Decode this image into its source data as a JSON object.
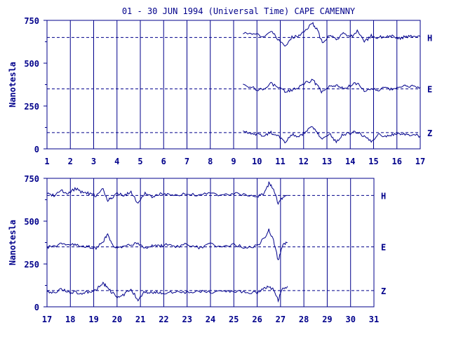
{
  "title": "01 - 30 JUN 1994 (Universal Time) CAPE CAMENNY",
  "colors": {
    "ink": "#00008b",
    "background": "#ffffff"
  },
  "chart_data": [
    {
      "type": "line",
      "panel": "top",
      "ylabel": "Nanotesla",
      "ylim": [
        0,
        750
      ],
      "yticks": [
        0,
        250,
        500,
        750
      ],
      "xlim": [
        1,
        17
      ],
      "xticks": [
        1,
        2,
        3,
        4,
        5,
        6,
        7,
        8,
        9,
        10,
        11,
        12,
        13,
        14,
        15,
        16,
        17
      ],
      "grid": "vertical lines at each day",
      "baselines": [
        {
          "component": "H",
          "value": 650
        },
        {
          "component": "E",
          "value": 350
        },
        {
          "component": "Z",
          "value": 95
        }
      ],
      "series": [
        {
          "name": "H",
          "x": [
            9.4,
            9.7,
            10.0,
            10.3,
            10.6,
            10.9,
            11.2,
            11.5,
            11.8,
            12.1,
            12.4,
            12.6,
            12.8,
            13.1,
            13.4,
            13.7,
            14.0,
            14.3,
            14.6,
            14.9,
            15.2,
            15.5,
            15.8,
            16.1,
            16.4,
            16.7,
            17.0
          ],
          "y": [
            680,
            670,
            665,
            655,
            690,
            640,
            600,
            650,
            660,
            700,
            730,
            690,
            620,
            660,
            640,
            670,
            650,
            690,
            620,
            660,
            650,
            655,
            660,
            645,
            655,
            660,
            655
          ]
        },
        {
          "name": "E",
          "x": [
            9.4,
            9.7,
            10.0,
            10.3,
            10.6,
            10.9,
            11.2,
            11.5,
            11.8,
            12.1,
            12.4,
            12.6,
            12.8,
            13.1,
            13.4,
            13.7,
            14.0,
            14.3,
            14.6,
            14.9,
            15.2,
            15.5,
            15.8,
            16.1,
            16.4,
            16.7,
            17.0
          ],
          "y": [
            375,
            365,
            345,
            345,
            380,
            365,
            335,
            345,
            360,
            385,
            400,
            365,
            330,
            360,
            370,
            355,
            370,
            385,
            335,
            350,
            345,
            360,
            345,
            355,
            370,
            365,
            360
          ]
        },
        {
          "name": "Z",
          "x": [
            9.4,
            9.7,
            10.0,
            10.3,
            10.6,
            10.9,
            11.2,
            11.5,
            11.8,
            12.1,
            12.4,
            12.6,
            12.8,
            13.1,
            13.4,
            13.7,
            14.0,
            14.3,
            14.6,
            14.9,
            15.2,
            15.5,
            15.8,
            16.1,
            16.4,
            16.7,
            17.0
          ],
          "y": [
            105,
            90,
            85,
            80,
            95,
            75,
            40,
            85,
            70,
            100,
            130,
            90,
            60,
            90,
            40,
            85,
            90,
            100,
            70,
            45,
            85,
            70,
            80,
            90,
            85,
            80,
            75
          ]
        }
      ]
    },
    {
      "type": "line",
      "panel": "bottom",
      "ylabel": "Nanotesla",
      "ylim": [
        0,
        750
      ],
      "yticks": [
        0,
        250,
        500,
        750
      ],
      "xlim": [
        17,
        31
      ],
      "xticks": [
        17,
        18,
        19,
        20,
        21,
        22,
        23,
        24,
        25,
        26,
        27,
        28,
        29,
        30,
        31
      ],
      "grid": "vertical lines at each day",
      "baselines": [
        {
          "component": "H",
          "value": 650
        },
        {
          "component": "E",
          "value": 350
        },
        {
          "component": "Z",
          "value": 95
        }
      ],
      "series": [
        {
          "name": "H",
          "x": [
            17.0,
            17.3,
            17.6,
            17.9,
            18.2,
            18.5,
            18.8,
            19.1,
            19.4,
            19.6,
            19.8,
            20.0,
            20.3,
            20.6,
            20.9,
            21.2,
            21.5,
            21.8,
            22.1,
            22.5,
            23.0,
            23.5,
            24.0,
            24.5,
            25.0,
            25.5,
            26.0,
            26.3,
            26.5,
            26.7,
            26.9,
            27.1,
            27.3
          ],
          "y": [
            660,
            650,
            680,
            660,
            690,
            670,
            660,
            650,
            690,
            620,
            640,
            660,
            650,
            670,
            600,
            660,
            640,
            660,
            655,
            650,
            660,
            650,
            665,
            650,
            660,
            655,
            645,
            660,
            720,
            690,
            600,
            640,
            650
          ]
        },
        {
          "name": "E",
          "x": [
            17.0,
            17.3,
            17.6,
            17.9,
            18.2,
            18.5,
            18.8,
            19.1,
            19.4,
            19.6,
            19.8,
            20.0,
            20.3,
            20.6,
            20.9,
            21.2,
            21.5,
            21.8,
            22.1,
            22.5,
            23.0,
            23.5,
            24.0,
            24.5,
            25.0,
            25.5,
            26.0,
            26.3,
            26.5,
            26.7,
            26.9,
            27.1,
            27.3
          ],
          "y": [
            350,
            350,
            365,
            370,
            360,
            350,
            350,
            340,
            380,
            420,
            360,
            340,
            355,
            360,
            370,
            345,
            360,
            355,
            360,
            350,
            365,
            345,
            365,
            350,
            365,
            345,
            355,
            400,
            450,
            390,
            270,
            360,
            375
          ]
        },
        {
          "name": "Z",
          "x": [
            17.0,
            17.3,
            17.6,
            17.9,
            18.2,
            18.5,
            18.8,
            19.1,
            19.4,
            19.6,
            19.8,
            20.0,
            20.3,
            20.6,
            20.9,
            21.2,
            21.5,
            21.8,
            22.1,
            22.5,
            23.0,
            23.5,
            24.0,
            24.5,
            25.0,
            25.5,
            26.0,
            26.3,
            26.5,
            26.7,
            26.9,
            27.1,
            27.3
          ],
          "y": [
            90,
            80,
            110,
            80,
            85,
            75,
            90,
            100,
            140,
            110,
            80,
            60,
            70,
            100,
            40,
            90,
            80,
            85,
            80,
            90,
            85,
            90,
            85,
            90,
            90,
            85,
            80,
            110,
            120,
            100,
            40,
            110,
            120
          ]
        }
      ]
    }
  ]
}
